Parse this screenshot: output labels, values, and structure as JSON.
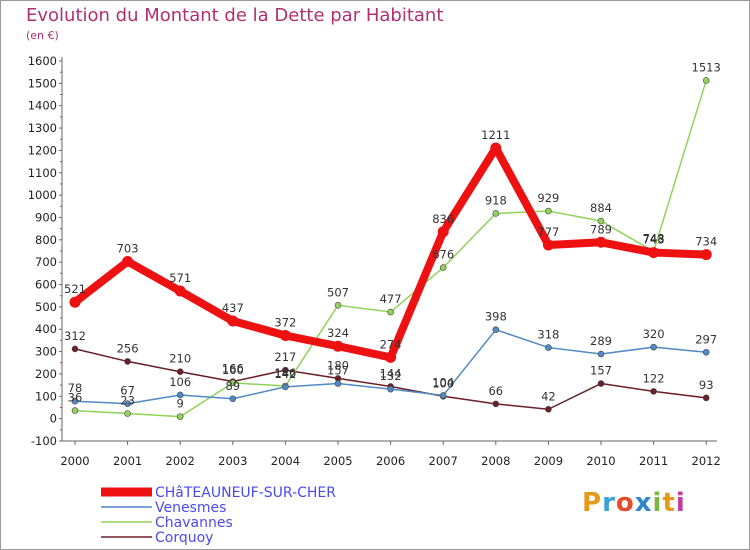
{
  "title": "Evolution du Montant de la Dette par Habitant",
  "subtitle": "(en €)",
  "logo": {
    "text": "Proxiti",
    "letter_colors": [
      "#e69a1c",
      "#3aa0d8",
      "#e34d2a",
      "#2f87c9",
      "#7ab642",
      "#e69a1c",
      "#c63aa0"
    ]
  },
  "chart_data": {
    "type": "line",
    "x": [
      "2000",
      "2001",
      "2002",
      "2003",
      "2004",
      "2005",
      "2006",
      "2007",
      "2008",
      "2009",
      "2010",
      "2011",
      "2012"
    ],
    "ylim": [
      -100,
      1600
    ],
    "yticks": [
      -100,
      0,
      100,
      200,
      300,
      400,
      500,
      600,
      700,
      800,
      900,
      1000,
      1100,
      1200,
      1300,
      1400,
      1500,
      1600
    ],
    "grid": false,
    "legend_position": "bottom-left",
    "series": [
      {
        "name": "CHâTEAUNEUF-SUR-CHER",
        "color": "#ee1111",
        "values": [
          521,
          703,
          571,
          437,
          372,
          324,
          274,
          836,
          1211,
          777,
          789,
          743,
          734
        ]
      },
      {
        "name": "Venesmes",
        "color": "#4f8ac4",
        "values": [
          78,
          67,
          106,
          89,
          142,
          157,
          132,
          104,
          398,
          318,
          289,
          320,
          297
        ]
      },
      {
        "name": "Chavannes",
        "color": "#8fd35a",
        "values": [
          36,
          23,
          9,
          160,
          146,
          507,
          477,
          676,
          918,
          929,
          884,
          748,
          1513
        ]
      },
      {
        "name": "Corquoy",
        "color": "#6a1f28",
        "values": [
          312,
          256,
          210,
          166,
          217,
          180,
          144,
          100,
          66,
          42,
          157,
          122,
          93
        ]
      }
    ],
    "data_labels": {
      "CHâTEAUNEUF-SUR-CHER": [
        "521",
        "703",
        "571",
        "437",
        "372",
        "324",
        "274",
        "836",
        "1211",
        "777",
        "789",
        "743",
        "734"
      ],
      "Venesmes": [
        "78",
        "67",
        "106",
        "89",
        "142",
        "157",
        "132",
        "104",
        "398",
        "318",
        "289",
        "320",
        "297"
      ],
      "Chavannes": [
        "36",
        "23",
        "9",
        "160",
        "146",
        "507",
        "477",
        "676",
        "918",
        "929",
        "884",
        "748",
        "1513"
      ],
      "Corquoy": [
        "312",
        "256",
        "210",
        "166",
        "217",
        "180",
        "144",
        "100",
        "66",
        "42",
        "157",
        "122",
        "93"
      ]
    }
  }
}
